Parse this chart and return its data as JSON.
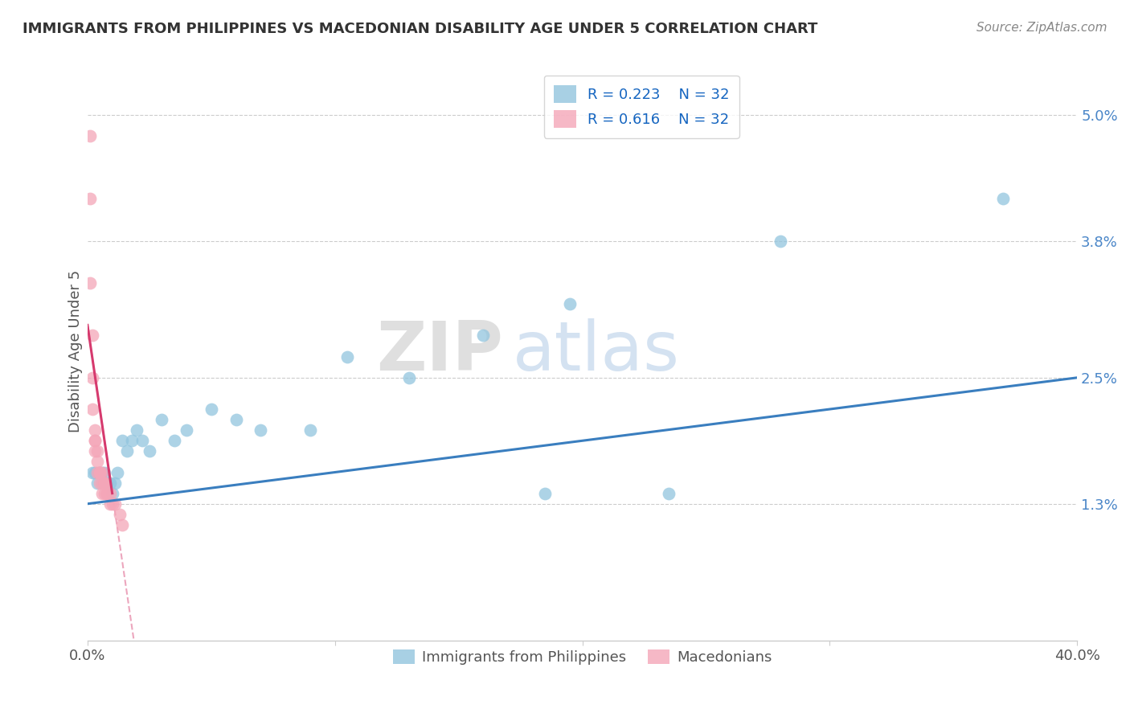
{
  "title": "IMMIGRANTS FROM PHILIPPINES VS MACEDONIAN DISABILITY AGE UNDER 5 CORRELATION CHART",
  "source_text": "Source: ZipAtlas.com",
  "ylabel": "Disability Age Under 5",
  "xlim": [
    0.0,
    0.4
  ],
  "ylim": [
    0.0,
    0.055
  ],
  "xticks": [
    0.0,
    0.1,
    0.2,
    0.3,
    0.4
  ],
  "xticklabels": [
    "0.0%",
    "",
    "",
    "",
    "40.0%"
  ],
  "yticks": [
    0.013,
    0.025,
    0.038,
    0.05
  ],
  "yticklabels": [
    "1.3%",
    "2.5%",
    "3.8%",
    "5.0%"
  ],
  "R_blue": 0.223,
  "N_blue": 32,
  "R_pink": 0.616,
  "N_pink": 32,
  "blue_color": "#92c5de",
  "pink_color": "#f4a6b8",
  "blue_line_color": "#3a7ebf",
  "pink_line_color": "#d63a6e",
  "legend_label_blue": "Immigrants from Philippines",
  "legend_label_pink": "Macedonians",
  "watermark_zip": "ZIP",
  "watermark_atlas": "atlas",
  "blue_x": [
    0.002,
    0.003,
    0.004,
    0.005,
    0.006,
    0.007,
    0.008,
    0.009,
    0.01,
    0.011,
    0.012,
    0.014,
    0.016,
    0.018,
    0.02,
    0.022,
    0.025,
    0.03,
    0.035,
    0.04,
    0.05,
    0.06,
    0.07,
    0.09,
    0.105,
    0.13,
    0.16,
    0.185,
    0.195,
    0.235,
    0.28,
    0.37
  ],
  "blue_y": [
    0.016,
    0.016,
    0.015,
    0.016,
    0.016,
    0.016,
    0.015,
    0.015,
    0.014,
    0.015,
    0.016,
    0.019,
    0.018,
    0.019,
    0.02,
    0.019,
    0.018,
    0.021,
    0.019,
    0.02,
    0.022,
    0.021,
    0.02,
    0.02,
    0.027,
    0.025,
    0.029,
    0.014,
    0.032,
    0.014,
    0.038,
    0.042
  ],
  "pink_x": [
    0.001,
    0.001,
    0.001,
    0.002,
    0.002,
    0.002,
    0.003,
    0.003,
    0.003,
    0.003,
    0.004,
    0.004,
    0.004,
    0.005,
    0.005,
    0.005,
    0.005,
    0.006,
    0.006,
    0.006,
    0.007,
    0.007,
    0.007,
    0.007,
    0.008,
    0.008,
    0.009,
    0.009,
    0.01,
    0.011,
    0.013,
    0.014
  ],
  "pink_y": [
    0.048,
    0.042,
    0.034,
    0.029,
    0.025,
    0.022,
    0.02,
    0.019,
    0.019,
    0.018,
    0.018,
    0.017,
    0.016,
    0.016,
    0.016,
    0.016,
    0.015,
    0.016,
    0.015,
    0.014,
    0.015,
    0.015,
    0.015,
    0.014,
    0.014,
    0.014,
    0.014,
    0.013,
    0.013,
    0.013,
    0.012,
    0.011
  ]
}
